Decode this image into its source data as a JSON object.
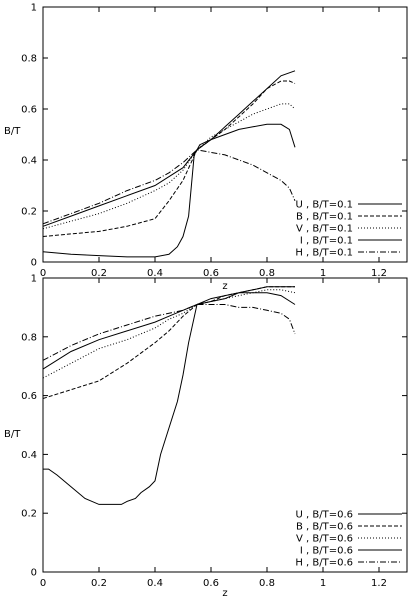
{
  "chart_data": [
    {
      "type": "line",
      "xlabel": "z",
      "ylabel": "B/T",
      "xlim": [
        0,
        1.3
      ],
      "ylim": [
        0,
        1
      ],
      "xticks": [
        "0",
        "0.2",
        "0.4",
        "0.6",
        "0.8",
        "1",
        "1.2"
      ],
      "yticks": [
        "0",
        "0.2",
        "0.4",
        "0.6",
        "0.8",
        "1"
      ],
      "grid": false,
      "legend_position": "bottom-right",
      "series": [
        {
          "name": "U , B/T=0.1",
          "style": "solid",
          "x": [
            0.0,
            0.1,
            0.2,
            0.3,
            0.4,
            0.45,
            0.48,
            0.5,
            0.52,
            0.54,
            0.56,
            0.6,
            0.65,
            0.7,
            0.75,
            0.8,
            0.85,
            0.88,
            0.9
          ],
          "y": [
            0.04,
            0.03,
            0.025,
            0.02,
            0.02,
            0.03,
            0.06,
            0.1,
            0.18,
            0.42,
            0.46,
            0.48,
            0.5,
            0.52,
            0.53,
            0.54,
            0.54,
            0.52,
            0.45
          ]
        },
        {
          "name": "B , B/T=0.1",
          "style": "dashed",
          "x": [
            0.0,
            0.1,
            0.2,
            0.3,
            0.4,
            0.45,
            0.5,
            0.55,
            0.6,
            0.65,
            0.7,
            0.75,
            0.8,
            0.85,
            0.88,
            0.9
          ],
          "y": [
            0.1,
            0.11,
            0.12,
            0.14,
            0.17,
            0.24,
            0.32,
            0.44,
            0.48,
            0.52,
            0.57,
            0.62,
            0.68,
            0.71,
            0.71,
            0.7
          ]
        },
        {
          "name": "V , B/T=0.1",
          "style": "dotted",
          "x": [
            0.0,
            0.1,
            0.2,
            0.3,
            0.4,
            0.45,
            0.5,
            0.55,
            0.6,
            0.65,
            0.7,
            0.75,
            0.8,
            0.85,
            0.88,
            0.9
          ],
          "y": [
            0.13,
            0.16,
            0.19,
            0.23,
            0.28,
            0.31,
            0.36,
            0.44,
            0.49,
            0.52,
            0.55,
            0.58,
            0.6,
            0.62,
            0.62,
            0.6
          ]
        },
        {
          "name": "I , B/T=0.1",
          "style": "solid",
          "x": [
            0.0,
            0.1,
            0.2,
            0.3,
            0.4,
            0.5,
            0.55,
            0.6,
            0.65,
            0.7,
            0.75,
            0.8,
            0.85,
            0.9
          ],
          "y": [
            0.14,
            0.18,
            0.22,
            0.26,
            0.3,
            0.37,
            0.44,
            0.48,
            0.53,
            0.58,
            0.63,
            0.68,
            0.73,
            0.75
          ]
        },
        {
          "name": "H , B/T=0.1",
          "style": "dashdot",
          "x": [
            0.0,
            0.1,
            0.2,
            0.3,
            0.4,
            0.45,
            0.5,
            0.55,
            0.6,
            0.65,
            0.7,
            0.75,
            0.8,
            0.85,
            0.88,
            0.9
          ],
          "y": [
            0.15,
            0.19,
            0.23,
            0.28,
            0.32,
            0.35,
            0.39,
            0.44,
            0.43,
            0.42,
            0.4,
            0.38,
            0.35,
            0.32,
            0.29,
            0.24
          ]
        }
      ]
    },
    {
      "type": "line",
      "xlabel": "z",
      "ylabel": "B/T",
      "xlim": [
        0,
        1.3
      ],
      "ylim": [
        0,
        1
      ],
      "xticks": [
        "0",
        "0.2",
        "0.4",
        "0.6",
        "0.8",
        "1",
        "1.2"
      ],
      "yticks": [
        "0",
        "0.2",
        "0.4",
        "0.6",
        "0.8",
        "1"
      ],
      "grid": false,
      "legend_position": "bottom-right",
      "series": [
        {
          "name": "U , B/T=0.6",
          "style": "solid",
          "x": [
            0.0,
            0.02,
            0.05,
            0.1,
            0.15,
            0.2,
            0.25,
            0.28,
            0.3,
            0.33,
            0.35,
            0.38,
            0.4,
            0.42,
            0.45,
            0.48,
            0.5,
            0.52,
            0.55,
            0.6,
            0.65,
            0.7,
            0.75,
            0.8,
            0.85,
            0.9
          ],
          "y": [
            0.35,
            0.35,
            0.33,
            0.29,
            0.25,
            0.23,
            0.23,
            0.23,
            0.24,
            0.25,
            0.27,
            0.29,
            0.31,
            0.4,
            0.49,
            0.58,
            0.67,
            0.78,
            0.91,
            0.93,
            0.94,
            0.95,
            0.95,
            0.95,
            0.94,
            0.91
          ]
        },
        {
          "name": "B , B/T=0.6",
          "style": "dashed",
          "x": [
            0.0,
            0.1,
            0.2,
            0.3,
            0.4,
            0.45,
            0.5,
            0.55,
            0.6,
            0.65,
            0.7,
            0.75,
            0.8,
            0.85,
            0.9
          ],
          "y": [
            0.59,
            0.62,
            0.65,
            0.71,
            0.78,
            0.82,
            0.87,
            0.91,
            0.92,
            0.94,
            0.95,
            0.96,
            0.97,
            0.97,
            0.97
          ]
        },
        {
          "name": "V , B/T=0.6",
          "style": "dotted",
          "x": [
            0.0,
            0.1,
            0.2,
            0.3,
            0.4,
            0.45,
            0.5,
            0.55,
            0.6,
            0.65,
            0.7,
            0.75,
            0.8,
            0.85,
            0.9
          ],
          "y": [
            0.66,
            0.71,
            0.76,
            0.79,
            0.83,
            0.86,
            0.88,
            0.91,
            0.92,
            0.93,
            0.94,
            0.95,
            0.96,
            0.96,
            0.95
          ]
        },
        {
          "name": "I , B/T=0.6",
          "style": "solid",
          "x": [
            0.0,
            0.1,
            0.2,
            0.3,
            0.4,
            0.45,
            0.5,
            0.55,
            0.6,
            0.65,
            0.7,
            0.75,
            0.8,
            0.85,
            0.9
          ],
          "y": [
            0.69,
            0.75,
            0.79,
            0.82,
            0.85,
            0.87,
            0.89,
            0.91,
            0.92,
            0.93,
            0.95,
            0.96,
            0.97,
            0.97,
            0.97
          ]
        },
        {
          "name": "H , B/T=0.6",
          "style": "dashdot",
          "x": [
            0.0,
            0.1,
            0.2,
            0.3,
            0.4,
            0.45,
            0.5,
            0.55,
            0.6,
            0.65,
            0.7,
            0.75,
            0.8,
            0.85,
            0.88,
            0.9
          ],
          "y": [
            0.72,
            0.77,
            0.81,
            0.84,
            0.87,
            0.88,
            0.89,
            0.91,
            0.91,
            0.91,
            0.9,
            0.9,
            0.89,
            0.88,
            0.86,
            0.81
          ]
        }
      ]
    }
  ]
}
